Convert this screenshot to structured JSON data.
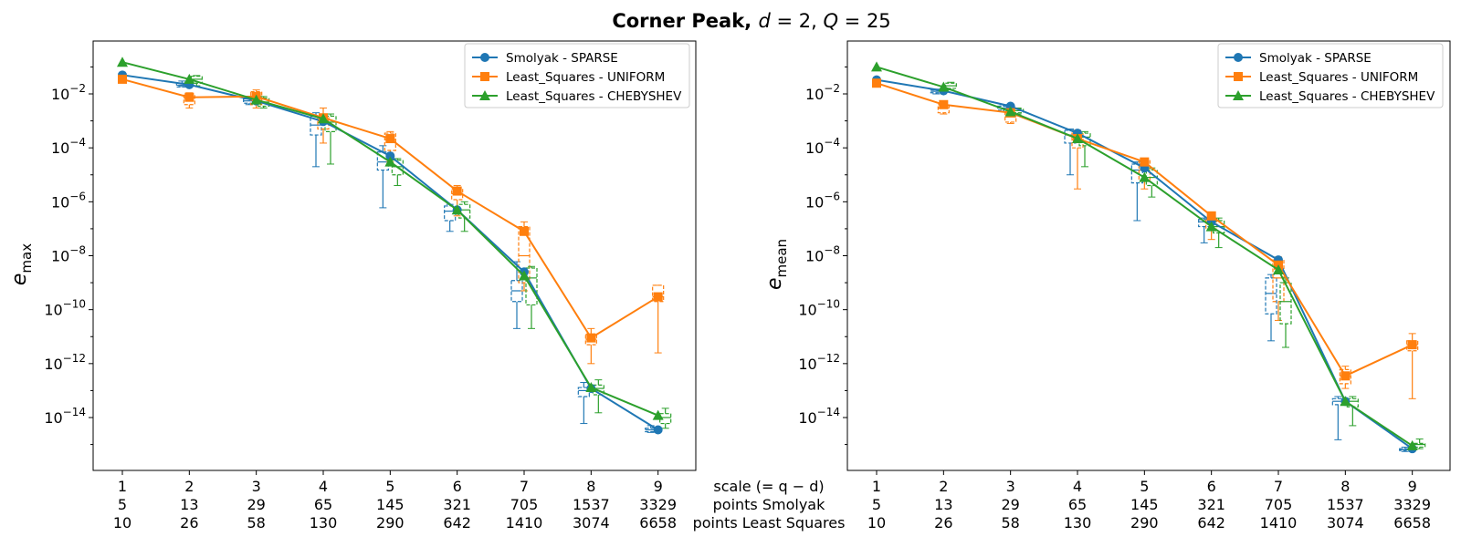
{
  "title": {
    "prefix": "Corner Peak, ",
    "d_symbol": "d",
    "d_value": " = 2, ",
    "q_symbol": "Q",
    "q_value": " = 25"
  },
  "colors": {
    "smolyak": "#1f77b4",
    "uniform": "#ff7f0e",
    "chebyshev": "#2ca02c"
  },
  "shared_x_labels": {
    "scale": "scale (= q − d)",
    "points_smolyak": "points Smolyak",
    "points_ls": "points Least Squares"
  },
  "chart_data": [
    {
      "type": "line",
      "ylabel": "e_max",
      "ylabel_main": "e",
      "ylabel_sub": "max",
      "yscale": "log",
      "ylim": [
        1e-16,
        1.0
      ],
      "ytick_exponents": [
        -2,
        -4,
        -6,
        -8,
        -10,
        -12,
        -14
      ],
      "x": [
        1,
        2,
        3,
        4,
        5,
        6,
        7,
        8,
        9
      ],
      "x_tick_rows": [
        [
          "1",
          "2",
          "3",
          "4",
          "5",
          "6",
          "7",
          "8",
          "9"
        ],
        [
          "5",
          "13",
          "29",
          "65",
          "145",
          "321",
          "705",
          "1537",
          "3329"
        ],
        [
          "10",
          "26",
          "58",
          "130",
          "290",
          "642",
          "1410",
          "3074",
          "6658"
        ]
      ],
      "legend_position": "upper right",
      "series": [
        {
          "name": "Smolyak - SPARSE",
          "color_key": "smolyak",
          "marker": "circle",
          "values": [
            0.05,
            0.022,
            0.0055,
            0.00095,
            5e-05,
            5e-07,
            2.5e-09,
            1.2e-13,
            3.5e-15
          ],
          "boxes": [
            [
              0.018,
              0.025,
              0.021,
              0.03,
              0.019
            ],
            [
              0.0045,
              0.0065,
              0.0055,
              0.007,
              0.004
            ],
            [
              0.0003,
              0.0015,
              0.0007,
              0.002,
              2e-05
            ],
            [
              1.5e-05,
              7e-05,
              3e-05,
              0.00012,
              6e-07
            ],
            [
              2e-07,
              7e-07,
              4.5e-07,
              8e-07,
              8e-08
            ],
            [
              2e-10,
              1.2e-09,
              5e-10,
              6e-09,
              2e-11
            ],
            [
              6e-14,
              1.3e-13,
              1e-13,
              2e-13,
              6e-15
            ],
            [
              3e-15,
              4e-15,
              3.5e-15,
              5e-15,
              2.8e-15
            ]
          ],
          "box_x": [
            2,
            3,
            4,
            5,
            6,
            7,
            8,
            9
          ]
        },
        {
          "name": "Least_Squares - UNIFORM",
          "color_key": "uniform",
          "marker": "square",
          "values": [
            0.035,
            0.0075,
            0.008,
            0.0013,
            0.00022,
            2.5e-06,
            8e-08,
            9e-12,
            3e-10
          ],
          "boxes": [
            [
              0.004,
              0.009,
              0.007,
              0.011,
              0.003
            ],
            [
              0.004,
              0.012,
              0.008,
              0.014,
              0.003
            ],
            [
              0.0005,
              0.0014,
              0.001,
              0.003,
              0.00015
            ],
            [
              8e-05,
              0.00035,
              0.0002,
              0.0004,
              3e-05
            ],
            [
              1.2e-06,
              3e-06,
              2e-06,
              4e-06,
              3e-07
            ],
            [
              1e-09,
              1.2e-07,
              1e-08,
              1.8e-07,
              5e-10
            ],
            [
              5e-12,
              1.2e-11,
              8e-12,
              2e-11,
              1e-12
            ],
            [
              2e-10,
              8e-10,
              3e-10,
              8e-10,
              2.5e-12
            ]
          ],
          "box_x": [
            2,
            3,
            4,
            5,
            6,
            7,
            8,
            9
          ]
        },
        {
          "name": "Least_Squares - CHEBYSHEV",
          "color_key": "chebyshev",
          "marker": "triangle",
          "values": [
            0.15,
            0.035,
            0.006,
            0.0012,
            3e-05,
            5e-07,
            1.8e-09,
            1.3e-13,
            1.2e-14
          ],
          "boxes": [
            [
              0.025,
              0.045,
              0.035,
              0.048,
              0.02
            ],
            [
              0.0035,
              0.007,
              0.005,
              0.008,
              0.003
            ],
            [
              0.0004,
              0.0015,
              0.0009,
              0.0018,
              2.5e-05
            ],
            [
              1e-05,
              3.5e-05,
              2e-05,
              4e-05,
              4e-06
            ],
            [
              2.5e-07,
              8e-07,
              5e-07,
              1e-06,
              8e-08
            ],
            [
              1.5e-10,
              3.5e-09,
              1.5e-09,
              4e-09,
              2e-11
            ],
            [
              7e-14,
              1.6e-13,
              1.2e-13,
              2.5e-13,
              1.5e-14
            ],
            [
              6e-15,
              1.4e-14,
              1e-14,
              2.2e-14,
              4e-15
            ]
          ],
          "box_x": [
            2,
            3,
            4,
            5,
            6,
            7,
            8,
            9
          ]
        }
      ]
    },
    {
      "type": "line",
      "ylabel": "e_mean",
      "ylabel_main": "e",
      "ylabel_sub": "mean",
      "yscale": "log",
      "ylim": [
        1e-17,
        1.0
      ],
      "ytick_exponents": [
        -2,
        -4,
        -6,
        -8,
        -10,
        -12,
        -14
      ],
      "x": [
        1,
        2,
        3,
        4,
        5,
        6,
        7,
        8,
        9
      ],
      "x_tick_rows": [
        [
          "1",
          "2",
          "3",
          "4",
          "5",
          "6",
          "7",
          "8",
          "9"
        ],
        [
          "5",
          "13",
          "29",
          "65",
          "145",
          "321",
          "705",
          "1537",
          "3329"
        ],
        [
          "10",
          "26",
          "58",
          "130",
          "290",
          "642",
          "1410",
          "3074",
          "6658"
        ]
      ],
      "legend_position": "upper right",
      "series": [
        {
          "name": "Smolyak - SPARSE",
          "color_key": "smolyak",
          "marker": "circle",
          "values": [
            0.033,
            0.013,
            0.0035,
            0.00035,
            1.8e-05,
            1.8e-07,
            7e-09,
            4e-14,
            7e-16
          ],
          "boxes": [
            [
              0.011,
              0.014,
              0.0125,
              0.015,
              0.01
            ],
            [
              0.0025,
              0.0035,
              0.003,
              0.004,
              0.0022
            ],
            [
              0.00015,
              0.00045,
              0.0003,
              0.0005,
              1e-05
            ],
            [
              5e-06,
              2.5e-05,
              1.5e-05,
              3e-05,
              2e-07
            ],
            [
              1.2e-07,
              2.2e-07,
              1.8e-07,
              2.5e-07,
              3e-08
            ],
            [
              7e-11,
              1.5e-09,
              4e-10,
              2e-09,
              7e-12
            ],
            [
              3e-14,
              5e-14,
              4e-14,
              6e-14,
              1.5e-15
            ],
            [
              6e-16,
              7e-16,
              6.5e-16,
              8e-16,
              5.5e-16
            ]
          ],
          "box_x": [
            2,
            3,
            4,
            5,
            6,
            7,
            8,
            9
          ]
        },
        {
          "name": "Least_Squares - UNIFORM",
          "color_key": "uniform",
          "marker": "square",
          "values": [
            0.025,
            0.004,
            0.002,
            0.00022,
            3e-05,
            3e-07,
            4.5e-09,
            3.5e-13,
            5e-12
          ],
          "boxes": [
            [
              0.002,
              0.004,
              0.003,
              0.0045,
              0.0018
            ],
            [
              0.0009,
              0.002,
              0.0014,
              0.0025,
              0.0008
            ],
            [
              0.0001,
              0.00035,
              0.0002,
              0.00045,
              3e-06
            ],
            [
              6e-06,
              3.5e-05,
              1.5e-05,
              4e-05,
              3e-06
            ],
            [
              1e-07,
              2.5e-07,
              1.8e-07,
              3e-07,
              4e-08
            ],
            [
              2e-10,
              7e-09,
              1.5e-09,
              9e-09,
              4e-11
            ],
            [
              1.8e-13,
              6e-13,
              3.5e-13,
              8e-13,
              1.2e-13
            ],
            [
              3e-12,
              7e-12,
              5e-12,
              1.3e-11,
              5e-14
            ]
          ],
          "box_x": [
            2,
            3,
            4,
            5,
            6,
            7,
            8,
            9
          ]
        },
        {
          "name": "Least_Squares - CHEBYSHEV",
          "color_key": "chebyshev",
          "marker": "triangle",
          "values": [
            0.1,
            0.018,
            0.0022,
            0.00022,
            8e-06,
            1.2e-07,
            3e-09,
            4e-14,
            9e-16
          ],
          "boxes": [
            [
              0.016,
              0.025,
              0.02,
              0.027,
              0.014
            ],
            [
              0.002,
              0.0028,
              0.0024,
              0.003,
              0.0018
            ],
            [
              0.00012,
              0.00035,
              0.00025,
              0.0004,
              2e-05
            ],
            [
              4e-06,
              1.5e-05,
              8e-06,
              1.8e-05,
              1.5e-06
            ],
            [
              7e-08,
              2e-07,
              1.2e-07,
              2.5e-07,
              2e-08
            ],
            [
              3e-11,
              1e-09,
              2e-10,
              1.5e-09,
              4e-12
            ],
            [
              2.5e-14,
              5e-14,
              4e-14,
              6e-14,
              5e-15
            ],
            [
              8e-16,
              1.1e-15,
              1e-15,
              1.6e-15,
              7e-16
            ]
          ],
          "box_x": [
            2,
            3,
            4,
            5,
            6,
            7,
            8,
            9
          ]
        }
      ]
    }
  ]
}
